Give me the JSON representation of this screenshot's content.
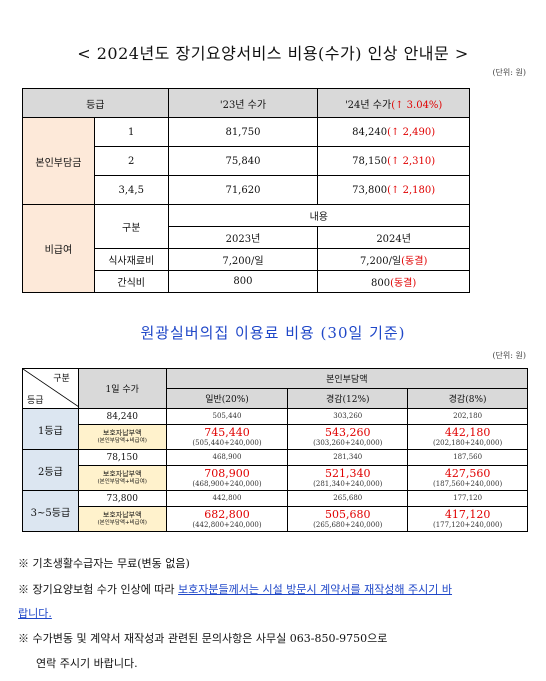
{
  "title": "< 2024년도 장기요양서비스 비용(수가) 인상 안내문 >",
  "unit": "(단위: 원)",
  "table1": {
    "header": {
      "grade": "등급",
      "col23": "'23년 수가",
      "col24": "'24년 수가",
      "col24_increase": "(↑ 3.04%)"
    },
    "self_pay_label": "본인부담금",
    "rows": [
      {
        "grade": "1",
        "y2023": "81,750",
        "y2024": "84,240",
        "diff": "(↑ 2,490)"
      },
      {
        "grade": "2",
        "y2023": "75,840",
        "y2024": "78,150",
        "diff": "(↑ 2,310)"
      },
      {
        "grade": "3,4,5",
        "y2023": "71,620",
        "y2024": "73,800",
        "diff": "(↑ 2,180)"
      }
    ],
    "nonpay_label": "비급여",
    "nonpay_header": {
      "category": "구분",
      "content": "내용",
      "y2023": "2023년",
      "y2024": "2024년"
    },
    "nonpay_rows": [
      {
        "item": "식사재료비",
        "y2023": "7,200/일",
        "y2024": "7,200/일",
        "note": "(동결)"
      },
      {
        "item": "간식비",
        "y2023": "800",
        "y2024": "800",
        "note": "(동결)"
      }
    ]
  },
  "title2": "원광실버의집 이용료 비용 (30일 기준)",
  "unit2": "(단위: 원)",
  "table2": {
    "corner_top": "구분",
    "corner_bottom": "등급",
    "daily_label": "1일 수가",
    "self_pay_label": "본인부담액",
    "cols": [
      "일반(20%)",
      "경감(12%)",
      "경감(8%)"
    ],
    "guardian_label": "보호자납부액",
    "guardian_sub": "(본인부담액+비급여)",
    "rows": [
      {
        "grade": "1등급",
        "daily": "84,240",
        "base": [
          "505,440",
          "303,260",
          "202,180"
        ],
        "pay": [
          "745,440",
          "543,260",
          "442,180"
        ],
        "calc": [
          "(505,440+240,000)",
          "(303,260+240,000)",
          "(202,180+240,000)"
        ]
      },
      {
        "grade": "2등급",
        "daily": "78,150",
        "base": [
          "468,900",
          "281,340",
          "187,560"
        ],
        "pay": [
          "708,900",
          "521,340",
          "427,560"
        ],
        "calc": [
          "(468,900+240,000)",
          "(281,340+240,000)",
          "(187,560+240,000)"
        ]
      },
      {
        "grade": "3~5등급",
        "daily": "73,800",
        "base": [
          "442,800",
          "265,680",
          "177,120"
        ],
        "pay": [
          "682,800",
          "505,680",
          "417,120"
        ],
        "calc": [
          "(442,800+240,000)",
          "(265,680+240,000)",
          "(177,120+240,000)"
        ]
      }
    ]
  },
  "notes": {
    "n1": "※  기초생활수급자는 무료(변동 없음)",
    "n2_pre": "※  장기요양보험 수가 인상에 따라 ",
    "n2_ul": "보호자분들께서는 시설 방문시 계약서를 재작성해 주시기 바",
    "n2_ul2": "랍니다.",
    "n3": "※  수가변동 및 계약서 재작성과 관련된 문의사항은 사무실 063-850-9750으로",
    "n3b": "연락 주시기 바랍니다."
  },
  "colors": {
    "header_bg": "#d9d9d9",
    "group_bg": "#fde9d9",
    "grade_bg": "#dce6f1",
    "label_bg": "#fff2cc",
    "red": "#e00000",
    "blue": "#1f47c8"
  }
}
